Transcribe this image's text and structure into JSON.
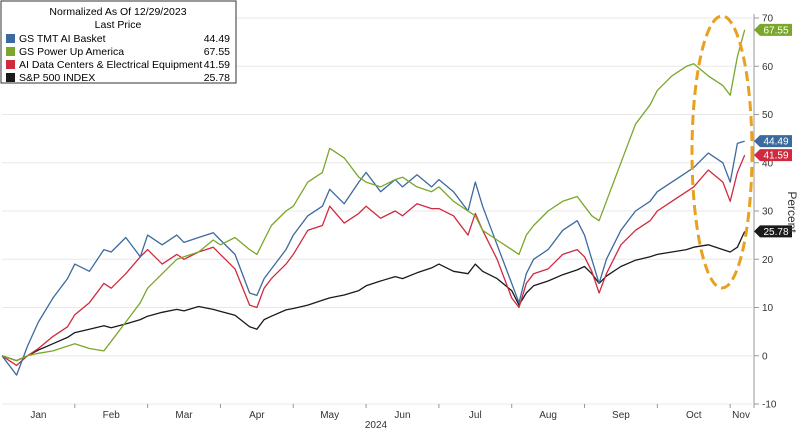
{
  "chart_data": {
    "type": "line",
    "legend": {
      "title_line1": "Normalized As Of 12/29/2023",
      "title_line2": "Last Price",
      "placement": "top-left"
    },
    "xlabel": "2024",
    "ylabel": "Percent",
    "ylim": [
      -10,
      70
    ],
    "yticks": [
      -10,
      0,
      10,
      20,
      30,
      40,
      50,
      60,
      70
    ],
    "x_range": [
      0,
      10.3
    ],
    "months": [
      {
        "label": "Jan",
        "pos": 0.5
      },
      {
        "label": "Feb",
        "pos": 1.5
      },
      {
        "label": "Mar",
        "pos": 2.5
      },
      {
        "label": "Apr",
        "pos": 3.5
      },
      {
        "label": "May",
        "pos": 4.5
      },
      {
        "label": "Jun",
        "pos": 5.5
      },
      {
        "label": "Jul",
        "pos": 6.5
      },
      {
        "label": "Aug",
        "pos": 7.5
      },
      {
        "label": "Sep",
        "pos": 8.5
      },
      {
        "label": "Oct",
        "pos": 9.5
      },
      {
        "label": "Nov",
        "pos": 10.15
      }
    ],
    "grid": true,
    "series": [
      {
        "name": "S&P 500 INDEX",
        "last": "25.78",
        "color": "#1a1a1a",
        "x": [
          0,
          0.2,
          0.35,
          0.5,
          0.7,
          0.9,
          1.0,
          1.2,
          1.4,
          1.5,
          1.7,
          1.9,
          2.0,
          2.2,
          2.4,
          2.5,
          2.7,
          2.9,
          3.0,
          3.2,
          3.4,
          3.5,
          3.6,
          3.7,
          3.9,
          4.0,
          4.2,
          4.4,
          4.5,
          4.7,
          4.9,
          5.0,
          5.2,
          5.4,
          5.5,
          5.7,
          5.9,
          6.0,
          6.2,
          6.4,
          6.5,
          6.6,
          6.8,
          7.0,
          7.1,
          7.2,
          7.3,
          7.5,
          7.7,
          7.9,
          8.0,
          8.1,
          8.2,
          8.3,
          8.5,
          8.7,
          8.9,
          9.0,
          9.2,
          9.4,
          9.5,
          9.7,
          9.9,
          10.0,
          10.1,
          10.2
        ],
        "values": [
          0,
          -1,
          0,
          1.2,
          2.5,
          3.8,
          4.8,
          5.5,
          6.2,
          5.8,
          6.6,
          7.5,
          8.2,
          9.0,
          9.6,
          9.3,
          10.2,
          9.6,
          9.2,
          8.4,
          6.0,
          5.5,
          7.5,
          8.2,
          9.5,
          9.8,
          10.5,
          11.5,
          12.0,
          12.6,
          13.5,
          14.5,
          15.5,
          16.4,
          16.0,
          17.2,
          18.2,
          19.0,
          17.5,
          17.0,
          19.0,
          17.5,
          16.0,
          13.5,
          10.5,
          13.0,
          14.5,
          15.5,
          16.8,
          17.8,
          18.5,
          17.0,
          15.0,
          16.5,
          18.5,
          19.8,
          20.5,
          21.0,
          21.5,
          22.0,
          22.5,
          23.0,
          22.0,
          21.5,
          22.5,
          25.78
        ]
      },
      {
        "name": "AI Data Centers & Electrical Equipment",
        "last": "41.59",
        "color": "#d02a3f",
        "x": [
          0,
          0.2,
          0.35,
          0.5,
          0.7,
          0.9,
          1.0,
          1.2,
          1.4,
          1.5,
          1.7,
          1.9,
          2.0,
          2.2,
          2.4,
          2.5,
          2.7,
          2.9,
          3.0,
          3.2,
          3.4,
          3.5,
          3.6,
          3.7,
          3.9,
          4.0,
          4.2,
          4.4,
          4.5,
          4.7,
          4.9,
          5.0,
          5.2,
          5.4,
          5.5,
          5.7,
          5.9,
          6.0,
          6.2,
          6.4,
          6.5,
          6.6,
          6.8,
          7.0,
          7.1,
          7.2,
          7.3,
          7.5,
          7.7,
          7.9,
          8.0,
          8.1,
          8.2,
          8.3,
          8.5,
          8.7,
          8.9,
          9.0,
          9.2,
          9.4,
          9.5,
          9.7,
          9.9,
          10.0,
          10.1,
          10.2
        ],
        "values": [
          0,
          -2,
          0,
          1.5,
          4.0,
          6.0,
          8.5,
          11.0,
          15.0,
          14.0,
          17.0,
          20.5,
          22.0,
          19.0,
          21.0,
          20.0,
          21.5,
          22.5,
          21.0,
          18.0,
          10.5,
          10.0,
          14.0,
          16.0,
          19.0,
          21.0,
          26.0,
          27.0,
          31.0,
          27.5,
          29.5,
          31.0,
          28.5,
          30.0,
          29.0,
          31.5,
          30.5,
          30.5,
          29.0,
          25.0,
          29.5,
          26.0,
          20.0,
          12.0,
          10.0,
          15.0,
          17.0,
          18.0,
          21.0,
          22.0,
          20.5,
          17.5,
          13.0,
          17.0,
          23.0,
          26.0,
          28.0,
          30.0,
          32.0,
          34.0,
          35.0,
          38.5,
          36.0,
          32.0,
          38.0,
          41.59
        ]
      },
      {
        "name": "GS TMT AI Basket",
        "last": "44.49",
        "color": "#3d6a9e",
        "x": [
          0,
          0.2,
          0.35,
          0.5,
          0.7,
          0.9,
          1.0,
          1.2,
          1.4,
          1.5,
          1.7,
          1.9,
          2.0,
          2.2,
          2.4,
          2.5,
          2.7,
          2.9,
          3.0,
          3.2,
          3.4,
          3.5,
          3.6,
          3.7,
          3.9,
          4.0,
          4.2,
          4.4,
          4.5,
          4.7,
          4.9,
          5.0,
          5.2,
          5.4,
          5.5,
          5.7,
          5.9,
          6.0,
          6.2,
          6.4,
          6.5,
          6.6,
          6.8,
          7.0,
          7.1,
          7.2,
          7.3,
          7.5,
          7.7,
          7.9,
          8.0,
          8.1,
          8.2,
          8.3,
          8.5,
          8.7,
          8.9,
          9.0,
          9.2,
          9.4,
          9.5,
          9.7,
          9.9,
          10.0,
          10.1,
          10.2
        ],
        "values": [
          0,
          -4,
          2,
          7.0,
          12.0,
          16.0,
          19.0,
          17.5,
          22.0,
          21.5,
          24.5,
          20.5,
          25.0,
          23.0,
          25.0,
          23.5,
          24.5,
          25.5,
          24.0,
          21.0,
          13.0,
          12.5,
          16.0,
          18.0,
          22.0,
          25.0,
          29.0,
          31.0,
          34.5,
          31.5,
          36.0,
          38.0,
          34.0,
          36.5,
          35.0,
          37.5,
          35.0,
          36.5,
          34.0,
          30.0,
          36.0,
          31.0,
          23.0,
          15.0,
          11.0,
          17.0,
          20.0,
          22.0,
          26.0,
          28.0,
          25.0,
          20.0,
          15.0,
          20.0,
          26.0,
          30.0,
          32.0,
          34.0,
          36.0,
          38.0,
          39.0,
          42.0,
          40.0,
          36.0,
          44.0,
          44.49
        ]
      },
      {
        "name": "GS Power Up America",
        "last": "67.55",
        "color": "#7aa72b",
        "x": [
          0,
          0.2,
          0.35,
          0.5,
          0.7,
          0.9,
          1.0,
          1.2,
          1.4,
          1.5,
          1.7,
          1.9,
          2.0,
          2.2,
          2.4,
          2.5,
          2.7,
          2.9,
          3.0,
          3.2,
          3.4,
          3.5,
          3.6,
          3.7,
          3.9,
          4.0,
          4.2,
          4.4,
          4.5,
          4.7,
          4.9,
          5.0,
          5.2,
          5.4,
          5.5,
          5.7,
          5.9,
          6.0,
          6.2,
          6.4,
          6.5,
          6.6,
          6.8,
          7.0,
          7.1,
          7.2,
          7.3,
          7.5,
          7.7,
          7.9,
          8.0,
          8.1,
          8.2,
          8.3,
          8.5,
          8.7,
          8.9,
          9.0,
          9.2,
          9.4,
          9.5,
          9.7,
          9.9,
          10.0,
          10.1,
          10.2
        ],
        "values": [
          0,
          -1,
          0,
          0.5,
          1.0,
          2.0,
          2.5,
          1.5,
          1.0,
          3.0,
          7.0,
          11.0,
          14.0,
          17.0,
          20.0,
          20.5,
          21.5,
          24.0,
          23.0,
          24.5,
          22.0,
          21.0,
          24.0,
          27.0,
          30.0,
          31.0,
          36.0,
          38.0,
          43.0,
          41.0,
          37.0,
          36.0,
          35.0,
          36.5,
          37.0,
          35.0,
          34.0,
          35.0,
          32.0,
          30.0,
          29.0,
          26.0,
          24.0,
          22.0,
          21.0,
          25.0,
          27.0,
          30.0,
          32.0,
          33.0,
          31.0,
          29.0,
          28.0,
          32.0,
          40.0,
          48.0,
          52.0,
          55.0,
          58.0,
          60.0,
          60.5,
          58.0,
          56.0,
          54.0,
          62.0,
          67.55
        ]
      }
    ]
  }
}
